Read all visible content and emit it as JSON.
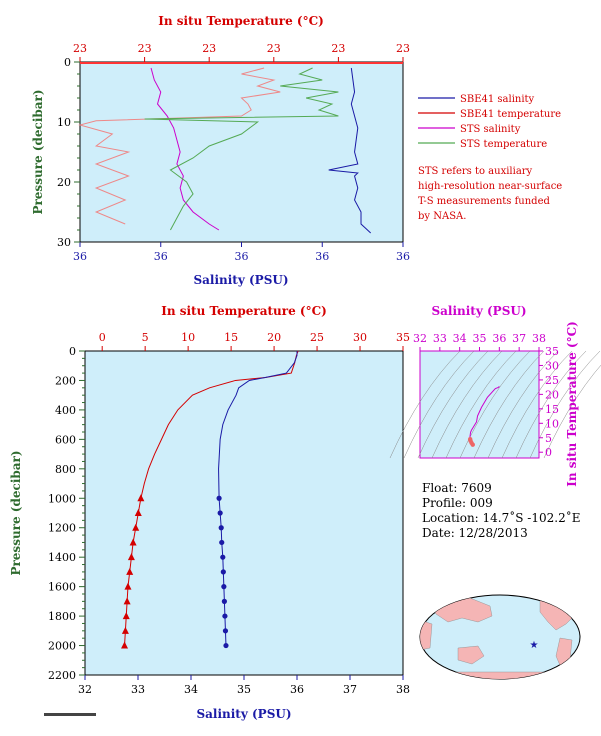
{
  "chart_data": [
    {
      "id": "upper",
      "type": "line",
      "title": "",
      "top_axis": {
        "label": "In situ Temperature (°C)",
        "ticks": [
          "23",
          "23",
          "23",
          "23",
          "23",
          "23"
        ]
      },
      "bottom_axis": {
        "label": "Salinity (PSU)",
        "ticks": [
          "36",
          "36",
          "36",
          "36",
          "36"
        ]
      },
      "y_axis": {
        "label": "Pressure (decibar)",
        "ticks": [
          "0",
          "10",
          "20",
          "30"
        ],
        "range": [
          0,
          30
        ],
        "inverted": true
      },
      "legend": {
        "placement": "right",
        "items": [
          {
            "label": "SBE41 salinity",
            "color": "#1a1aa6"
          },
          {
            "label": "SBE41 temperature",
            "color": "#d40000"
          },
          {
            "label": "STS salinity",
            "color": "#cc00cc"
          },
          {
            "label": "STS temperature",
            "color": "#55aa55"
          }
        ]
      },
      "note": [
        "STS refers to auxiliary",
        "high-resolution near-surface",
        "T-S measurements funded",
        "by NASA."
      ],
      "series": [
        {
          "name": "SBE41 salinity",
          "color": "#1a1aa6",
          "p": [
            1,
            3,
            5,
            7,
            9,
            11,
            13,
            15,
            17,
            18,
            18.5,
            19,
            21,
            23,
            25,
            27,
            28.5
          ],
          "s": [
            0.84,
            0.845,
            0.85,
            0.84,
            0.85,
            0.86,
            0.855,
            0.85,
            0.86,
            0.77,
            0.86,
            0.85,
            0.86,
            0.85,
            0.87,
            0.87,
            0.9
          ]
        },
        {
          "name": "SBE41 temperature",
          "color": "#d40000",
          "p": [
            0,
            0.5
          ],
          "s": [
            0,
            1
          ]
        },
        {
          "name": "STS salinity",
          "color": "#cc00cc",
          "p": [
            1,
            3,
            5,
            7,
            9,
            11,
            13,
            15,
            17,
            19,
            21,
            23,
            25,
            27,
            28
          ],
          "s": [
            0.22,
            0.23,
            0.25,
            0.24,
            0.27,
            0.29,
            0.3,
            0.31,
            0.3,
            0.32,
            0.31,
            0.32,
            0.35,
            0.4,
            0.43
          ]
        },
        {
          "name": "STS temperature",
          "color": "#55aa55",
          "p": [
            1,
            2,
            3,
            4,
            5,
            6,
            7,
            8,
            9,
            9.5,
            10,
            12,
            14,
            16,
            18,
            20,
            22,
            24,
            26,
            28
          ],
          "s": [
            0.72,
            0.68,
            0.75,
            0.62,
            0.8,
            0.7,
            0.78,
            0.74,
            0.8,
            0.2,
            0.55,
            0.5,
            0.4,
            0.35,
            0.28,
            0.33,
            0.35,
            0.32,
            0.3,
            0.28
          ]
        }
      ],
      "pink_series": {
        "name": "",
        "color": "#ee8888",
        "p": [
          1,
          2,
          3,
          4,
          5,
          6,
          7,
          8,
          9,
          9.8,
          10.5,
          12,
          14,
          15,
          17,
          19,
          21,
          23,
          25,
          27
        ],
        "s": [
          0.57,
          0.5,
          0.6,
          0.55,
          0.62,
          0.5,
          0.52,
          0.53,
          0.5,
          0.05,
          0.0,
          0.1,
          0.05,
          0.15,
          0.05,
          0.15,
          0.05,
          0.14,
          0.05,
          0.14
        ]
      }
    },
    {
      "id": "lower",
      "type": "line",
      "top_axis": {
        "label": "In situ Temperature (°C)",
        "ticks": [
          "0",
          "5",
          "10",
          "15",
          "20",
          "25",
          "30",
          "35"
        ],
        "range": [
          -2,
          35
        ]
      },
      "bottom_axis": {
        "label": "Salinity (PSU)",
        "ticks": [
          "32",
          "33",
          "34",
          "35",
          "36",
          "37",
          "38"
        ],
        "range": [
          32,
          38
        ]
      },
      "y_axis": {
        "label": "Pressure (decibar)",
        "ticks": [
          "0",
          "200",
          "400",
          "600",
          "800",
          "1000",
          "1200",
          "1400",
          "1600",
          "1800",
          "2000",
          "2200"
        ],
        "range": [
          0,
          2200
        ],
        "inverted": true
      },
      "series": [
        {
          "name": "temperature",
          "color": "#d40000",
          "p": [
            0,
            30,
            80,
            150,
            180,
            200,
            250,
            300,
            400,
            500,
            600,
            700,
            800,
            900,
            1000,
            1100,
            1200,
            1300,
            1400,
            1500,
            1600,
            1700,
            1800,
            1900,
            2000
          ],
          "t": [
            22.8,
            22.6,
            22.4,
            22.0,
            19.0,
            15.5,
            12.5,
            10.5,
            8.8,
            7.7,
            6.9,
            6.1,
            5.4,
            4.9,
            4.5,
            4.2,
            3.9,
            3.6,
            3.4,
            3.2,
            3.0,
            2.9,
            2.8,
            2.7,
            2.6
          ]
        },
        {
          "name": "salinity",
          "color": "#1a1aa6",
          "p": [
            0,
            30,
            80,
            150,
            180,
            200,
            250,
            300,
            400,
            500,
            600,
            800,
            1000,
            1100,
            1200,
            1300,
            1400,
            1500,
            1600,
            1700,
            1800,
            1900,
            2000
          ],
          "s": [
            36.0,
            36.0,
            35.95,
            35.8,
            35.4,
            35.1,
            34.9,
            34.85,
            34.7,
            34.6,
            34.55,
            34.52,
            34.53,
            34.55,
            34.57,
            34.58,
            34.6,
            34.61,
            34.62,
            34.63,
            34.64,
            34.65,
            34.66
          ]
        }
      ]
    },
    {
      "id": "ts-diagram",
      "type": "scatter",
      "top_axis": {
        "label": "Salinity (PSU)",
        "ticks": [
          "32",
          "33",
          "34",
          "35",
          "36",
          "37",
          "38"
        ],
        "range": [
          32,
          38
        ]
      },
      "right_axis": {
        "label": "In situ Temperature (°C)",
        "ticks": [
          "0",
          "5",
          "10",
          "15",
          "20",
          "25",
          "30",
          "35"
        ],
        "range": [
          -2,
          35
        ]
      },
      "series": [
        {
          "name": "profile",
          "color": "#cc00cc",
          "s": [
            36.0,
            35.95,
            35.8,
            35.4,
            35.1,
            34.9,
            34.85,
            34.7,
            34.6,
            34.55,
            34.52,
            34.53,
            34.55,
            34.6,
            34.66
          ],
          "t": [
            22.8,
            22.4,
            22.0,
            19.0,
            15.5,
            12.5,
            10.5,
            8.8,
            7.7,
            6.9,
            5.4,
            4.5,
            3.9,
            3.2,
            2.6
          ]
        }
      ]
    }
  ],
  "info": {
    "float": "Float:  7609",
    "profile": "Profile:  009",
    "location": "Location:  14.7˚S  -102.2˚E",
    "date": "Date:  12/28/2013"
  }
}
